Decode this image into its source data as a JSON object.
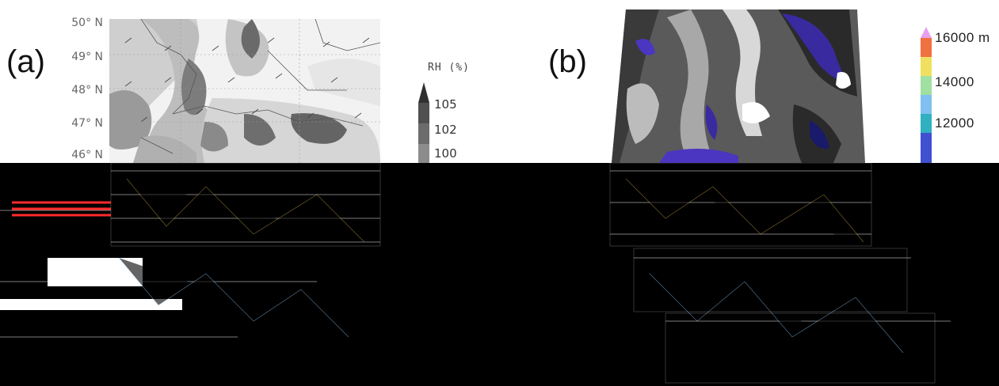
{
  "panel_a": {
    "letter": "(a)",
    "lat_labels": [
      "50° N",
      "49° N",
      "48° N",
      "47° N",
      "46° N"
    ],
    "legend": {
      "title": "RH (%)",
      "ticks": [
        "105",
        "102",
        "100"
      ]
    }
  },
  "panel_b": {
    "letter": "(b)",
    "colorbar_ticks": [
      "16000 m",
      "14000",
      "12000"
    ],
    "colorbar_colors": [
      "#e8a0f0",
      "#f07040",
      "#f0e060",
      "#a0e0a0",
      "#80c0f0",
      "#30b0c0",
      "#4050d0"
    ]
  },
  "colors": {
    "rh_dark": "#3a3a3a",
    "rh_mid": "#7a7a7a",
    "rh_light": "#c8c8c8",
    "purple": "#3a2aa0"
  }
}
